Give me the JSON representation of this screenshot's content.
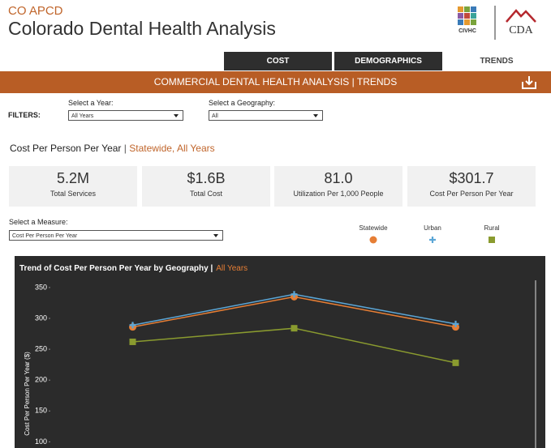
{
  "header": {
    "kicker": "CO APCD",
    "title": "Colorado Dental Health Analysis",
    "logos": [
      "CIVHC",
      "CDA"
    ]
  },
  "tabs": [
    "COST",
    "DEMOGRAPHICS",
    "TRENDS"
  ],
  "banner": "COMMERCIAL DENTAL HEALTH ANALYSIS | TRENDS",
  "filters": {
    "label": "FILTERS:",
    "year": {
      "label": "Select a Year:",
      "value": "All Years"
    },
    "geography": {
      "label": "Select a Geography:",
      "value": "All"
    }
  },
  "section": {
    "title": "Cost Per Person Per Year",
    "highlight": "Statewide, All Years"
  },
  "summary": [
    {
      "value": "5.2M",
      "label": "Total Services"
    },
    {
      "value": "$1.6B",
      "label": "Total Cost"
    },
    {
      "value": "81.0",
      "label": "Utilization Per 1,000 People"
    },
    {
      "value": "$301.7",
      "label": "Cost Per Person Per Year"
    }
  ],
  "measure": {
    "label": "Select a Measure:",
    "value": "Cost Per Person Per Year"
  },
  "chart_data": {
    "type": "line",
    "title": "Trend of Cost Per Person Per Year by Geography |",
    "subtitle": "All Years",
    "y_label": "Cost Per Person Per Year ($)",
    "categories": [
      null,
      null,
      null
    ],
    "series": [
      {
        "name": "Statewide",
        "color": "#e67e35",
        "marker": "circle",
        "values": [
          286,
          335,
          286
        ]
      },
      {
        "name": "Urban",
        "color": "#5ba6d6",
        "marker": "plus",
        "values": [
          289,
          339,
          291
        ]
      },
      {
        "name": "Rural",
        "color": "#8a9b2f",
        "marker": "square",
        "values": [
          262,
          284,
          228
        ]
      }
    ],
    "ylim": [
      90,
      363
    ],
    "yticks": [
      100,
      150,
      200,
      250,
      300,
      350
    ]
  }
}
